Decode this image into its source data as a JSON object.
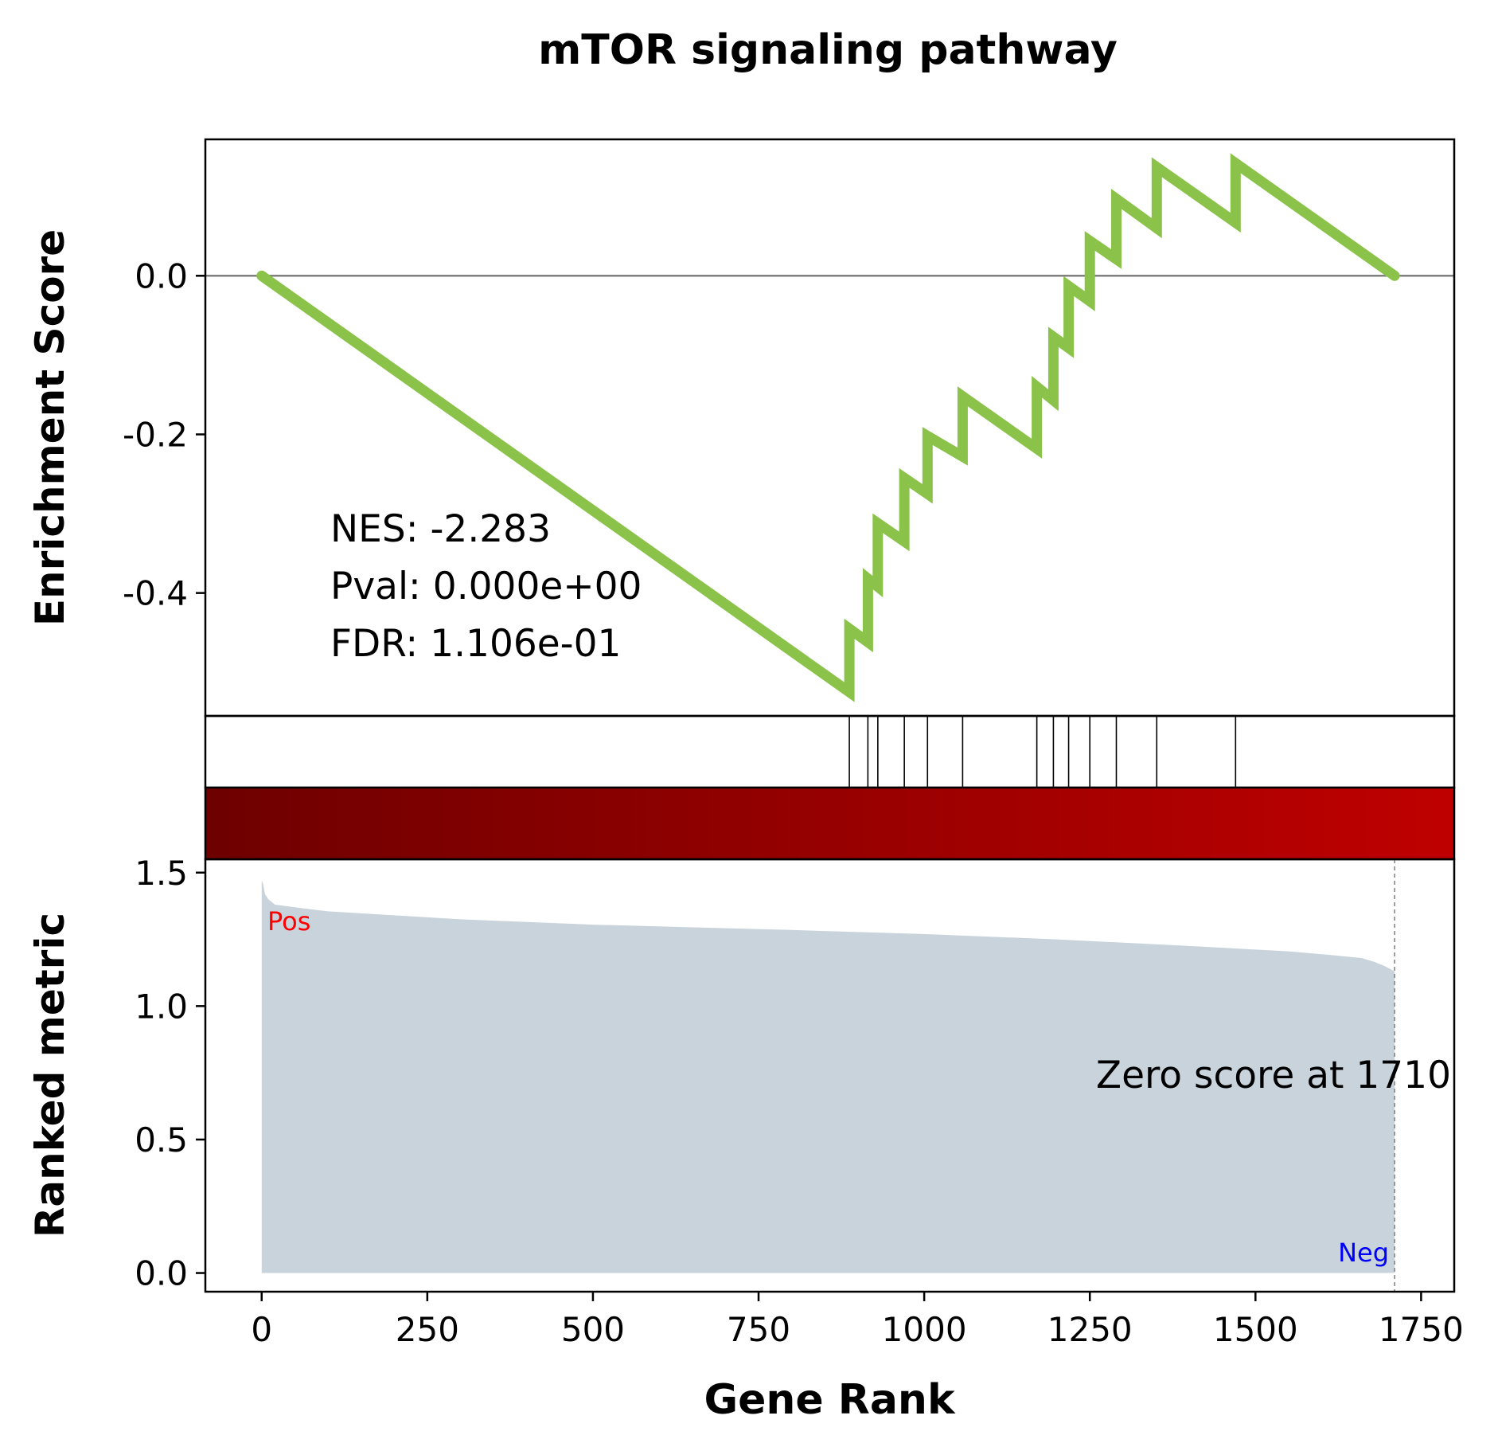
{
  "chart_data": {
    "type": "line",
    "title": "mTOR signaling pathway",
    "top_panel": {
      "ylabel": "Enrichment Score",
      "yticks": [
        "0.0",
        "-0.2",
        "-0.4"
      ],
      "ytick_values": [
        0.0,
        -0.2,
        -0.4
      ],
      "ylim": [
        -0.555,
        0.172
      ],
      "line_color": "#8bc34a",
      "zero_line_color": "#808080",
      "stats": {
        "nes": "NES: -2.283",
        "pval": "Pval: 0.000e+00",
        "fdr": "FDR: 1.106e-01"
      },
      "series": [
        {
          "x": [
            0,
            887,
            887,
            915,
            915,
            930,
            930,
            970,
            970,
            1005,
            1005,
            1058,
            1058,
            1170,
            1170,
            1195,
            1195,
            1218,
            1218,
            1250,
            1250,
            1290,
            1290,
            1351,
            1351,
            1470,
            1470,
            1710
          ],
          "y": [
            0.0,
            -0.525,
            -0.445,
            -0.462,
            -0.382,
            -0.392,
            -0.312,
            -0.335,
            -0.255,
            -0.275,
            -0.202,
            -0.228,
            -0.152,
            -0.218,
            -0.14,
            -0.157,
            -0.077,
            -0.091,
            -0.013,
            -0.032,
            0.044,
            0.021,
            0.097,
            0.06,
            0.137,
            0.067,
            0.142,
            0.0
          ]
        }
      ]
    },
    "hit_positions": [
      887,
      915,
      930,
      970,
      1005,
      1058,
      1170,
      1195,
      1218,
      1250,
      1290,
      1351,
      1470
    ],
    "heatmap": {
      "color_start": "#6e0000",
      "color_end": "#bf0000"
    },
    "bottom_panel": {
      "ylabel": "Ranked metric",
      "yticks": [
        "1.5",
        "1.0",
        "0.5",
        "0.0"
      ],
      "ytick_values": [
        1.5,
        1.0,
        0.5,
        0.0
      ],
      "ylim": [
        -0.07,
        1.55
      ],
      "fill_color": "#c8d3dc",
      "pos_label": "Pos",
      "neg_label": "Neg",
      "zero_score_label": "Zero score at 1710",
      "zero_score_rank": 1710,
      "curve": {
        "x": [
          0,
          2,
          5,
          10,
          20,
          50,
          100,
          200,
          300,
          500,
          800,
          1000,
          1200,
          1400,
          1550,
          1620,
          1660,
          1680,
          1695,
          1710
        ],
        "y": [
          1.47,
          1.46,
          1.42,
          1.4,
          1.38,
          1.37,
          1.355,
          1.34,
          1.325,
          1.305,
          1.285,
          1.27,
          1.25,
          1.225,
          1.205,
          1.19,
          1.18,
          1.165,
          1.15,
          1.13
        ]
      }
    },
    "xlabel": "Gene Rank",
    "xticks": [
      "0",
      "250",
      "500",
      "750",
      "1000",
      "1250",
      "1500",
      "1750"
    ],
    "xtick_values": [
      0,
      250,
      500,
      750,
      1000,
      1250,
      1500,
      1750
    ],
    "xlim": [
      -85,
      1800
    ]
  }
}
